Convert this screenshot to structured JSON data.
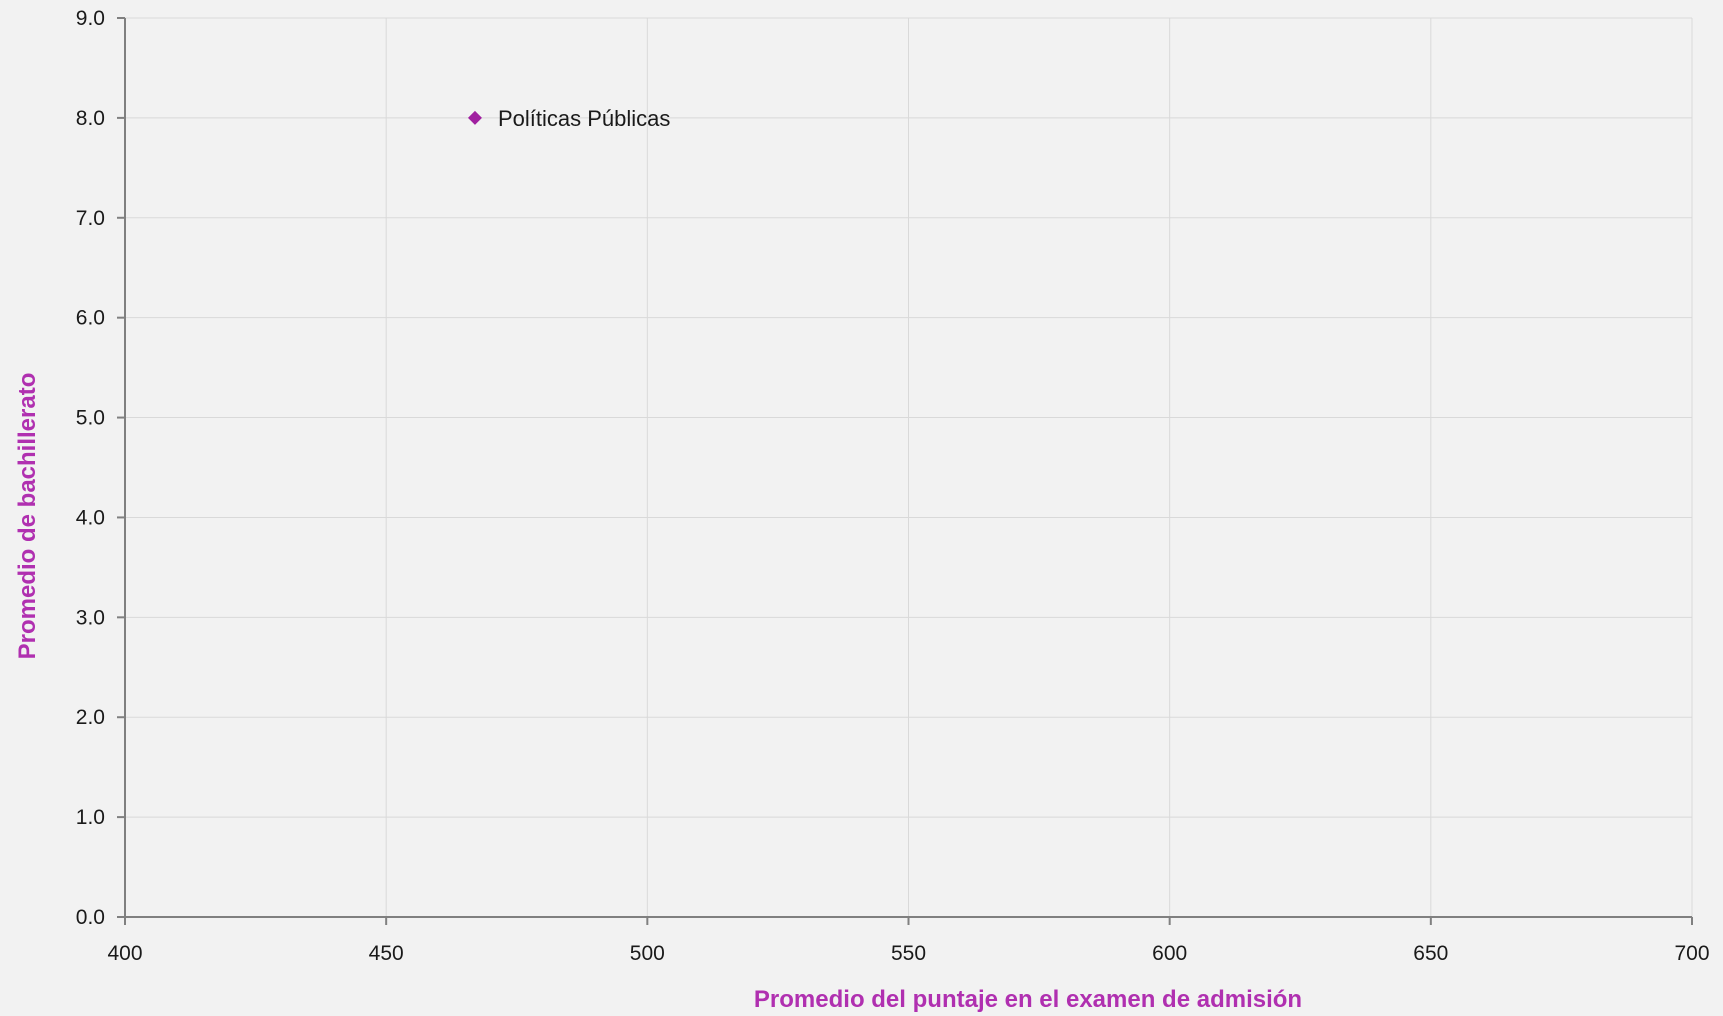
{
  "chart_data": {
    "type": "scatter",
    "xlabel": "Promedio del puntaje en el examen de admisión",
    "ylabel": "Promedio de bachillerato",
    "xlim": [
      400,
      700
    ],
    "ylim": [
      0,
      9
    ],
    "x_ticks": [
      "400",
      "450",
      "500",
      "550",
      "600",
      "650",
      "700"
    ],
    "y_ticks": [
      "0.0",
      "1.0",
      "2.0",
      "3.0",
      "4.0",
      "5.0",
      "6.0",
      "7.0",
      "8.0",
      "9.0"
    ],
    "grid": true,
    "points": [
      {
        "label": "Políticas Públicas",
        "x": 467,
        "y": 8.0
      }
    ],
    "colors": {
      "marker": "#a020a0",
      "axis_title": "#b030b0"
    }
  }
}
